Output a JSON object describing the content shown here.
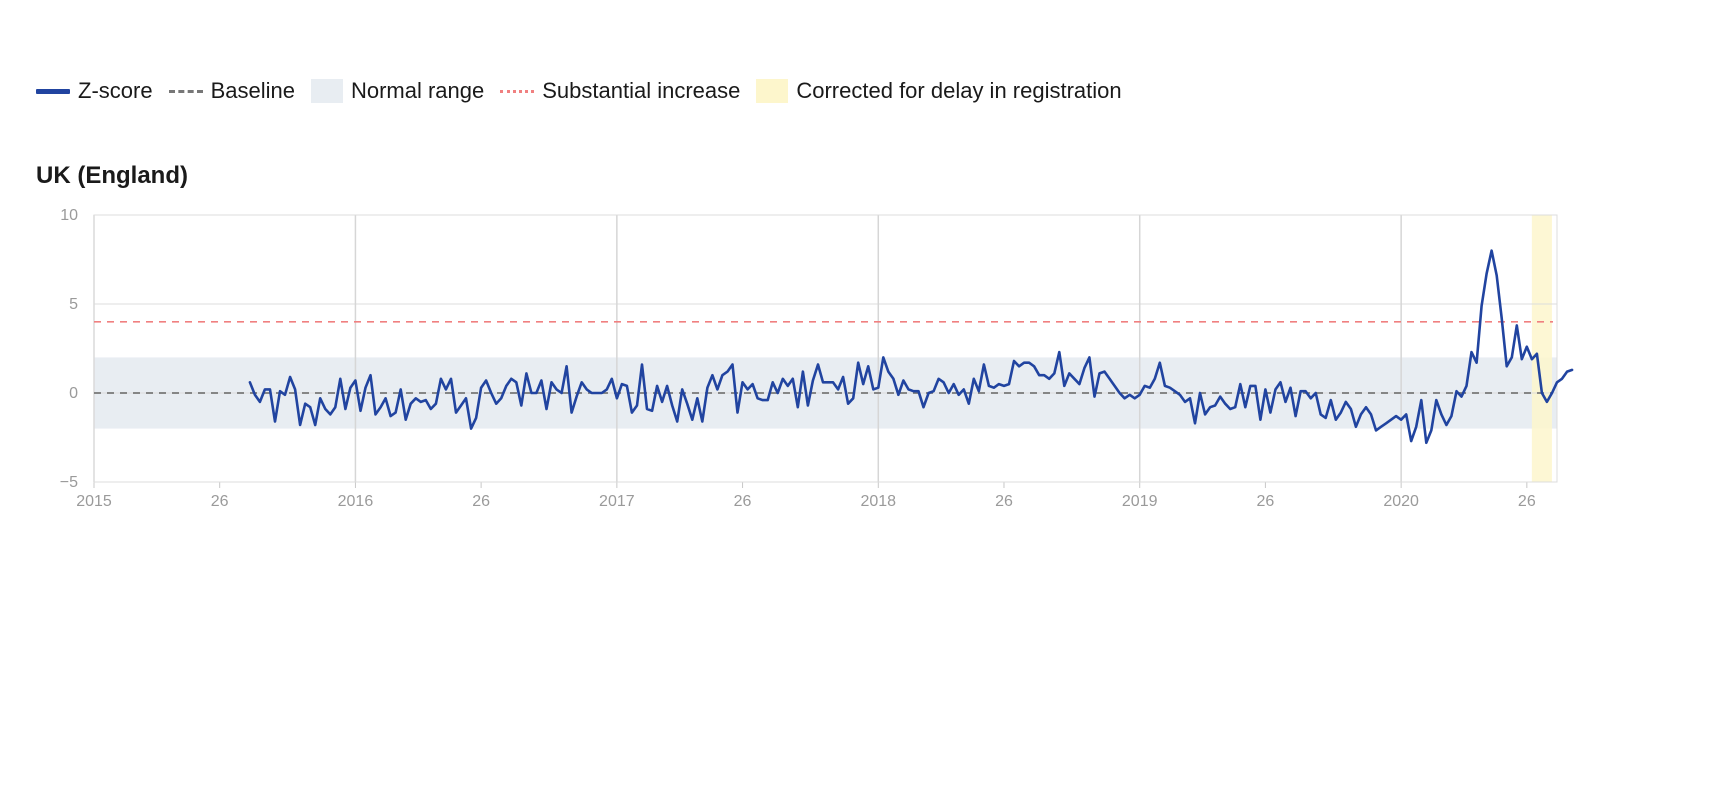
{
  "legend": {
    "zscore": "Z-score",
    "baseline": "Baseline",
    "normal": "Normal range",
    "increase": "Substantial increase",
    "corrected": "Corrected for delay in registration"
  },
  "colors": {
    "zscore": "#2144a0",
    "baseline": "#777777",
    "normal": "#e8edf2",
    "increase": "#f08080",
    "corrected": "#fdf6cc"
  },
  "chart_data": {
    "type": "line",
    "title": "UK (England)",
    "ylim": [
      -5,
      10
    ],
    "yticks": [
      -5,
      0,
      5,
      10
    ],
    "x_ticks": [
      "2015",
      "26",
      "2016",
      "26",
      "2017",
      "26",
      "2018",
      "26",
      "2019",
      "26",
      "2020",
      "26"
    ],
    "x_tick_weeks": [
      1,
      26,
      53,
      78,
      105,
      130,
      157,
      182,
      209,
      234,
      261,
      286
    ],
    "baseline": 0,
    "normal_range": [
      -2,
      2
    ],
    "substantial_increase": 4,
    "corrected_weeks": [
      287,
      291
    ],
    "series": [
      {
        "name": "Z-score",
        "start_week": 32,
        "values": [
          0.6,
          -0.1,
          -0.5,
          0.2,
          0.2,
          -1.6,
          0.1,
          -0.1,
          0.9,
          0.2,
          -1.8,
          -0.6,
          -0.8,
          -1.8,
          -0.3,
          -0.9,
          -1.2,
          -0.8,
          0.8,
          -0.9,
          0.3,
          0.7,
          -1.0,
          0.3,
          1.0,
          -1.2,
          -0.8,
          -0.3,
          -1.3,
          -1.1,
          0.2,
          -1.5,
          -0.6,
          -0.3,
          -0.5,
          -0.4,
          -0.9,
          -0.6,
          0.8,
          0.2,
          0.8,
          -1.1,
          -0.7,
          -0.3,
          -2.0,
          -1.4,
          0.3,
          0.7,
          0.0,
          -0.6,
          -0.3,
          0.4,
          0.8,
          0.6,
          -0.7,
          1.1,
          0.0,
          0.0,
          0.7,
          -0.9,
          0.6,
          0.2,
          0.0,
          1.5,
          -1.1,
          -0.2,
          0.6,
          0.2,
          0.0,
          0.0,
          0.0,
          0.2,
          0.8,
          -0.3,
          0.5,
          0.4,
          -1.1,
          -0.7,
          1.6,
          -0.9,
          -1.0,
          0.4,
          -0.5,
          0.4,
          -0.7,
          -1.6,
          0.2,
          -0.6,
          -1.5,
          -0.3,
          -1.6,
          0.3,
          1.0,
          0.2,
          1.0,
          1.2,
          1.6,
          -1.1,
          0.6,
          0.2,
          0.5,
          -0.3,
          -0.4,
          -0.4,
          0.6,
          0.0,
          0.8,
          0.4,
          0.8,
          -0.8,
          1.2,
          -0.7,
          0.7,
          1.6,
          0.6,
          0.6,
          0.6,
          0.2,
          0.9,
          -0.6,
          -0.3,
          1.7,
          0.5,
          1.5,
          0.2,
          0.3,
          2.0,
          1.2,
          0.8,
          -0.1,
          0.7,
          0.2,
          0.1,
          0.1,
          -0.8,
          0.0,
          0.1,
          0.8,
          0.6,
          0.0,
          0.5,
          -0.1,
          0.2,
          -0.6,
          0.8,
          0.1,
          1.6,
          0.4,
          0.3,
          0.5,
          0.4,
          0.5,
          1.8,
          1.5,
          1.7,
          1.7,
          1.5,
          1.0,
          1.0,
          0.8,
          1.1,
          2.3,
          0.4,
          1.1,
          0.8,
          0.5,
          1.4,
          2.0,
          -0.2,
          1.1,
          1.2,
          0.8,
          0.4,
          0.0,
          -0.3,
          -0.1,
          -0.3,
          -0.1,
          0.4,
          0.3,
          0.8,
          1.7,
          0.4,
          0.3,
          0.1,
          -0.1,
          -0.5,
          -0.3,
          -1.7,
          0.0,
          -1.2,
          -0.8,
          -0.7,
          -0.2,
          -0.6,
          -0.9,
          -0.8,
          0.5,
          -0.8,
          0.4,
          0.4,
          -1.5,
          0.2,
          -1.1,
          0.2,
          0.6,
          -0.5,
          0.3,
          -1.3,
          0.1,
          0.1,
          -0.3,
          0.0,
          -1.2,
          -1.4,
          -0.4,
          -1.5,
          -1.1,
          -0.5,
          -0.9,
          -1.9,
          -1.2,
          -0.8,
          -1.2,
          -2.1,
          -1.9,
          -1.7,
          -1.5,
          -1.3,
          -1.5,
          -1.2,
          -2.7,
          -1.9,
          -0.4,
          -2.8,
          -2.1,
          -0.4,
          -1.2,
          -1.8,
          -1.3,
          0.1,
          -0.2,
          0.4,
          2.3,
          1.7,
          4.9,
          6.7,
          8.0,
          6.6,
          4.2,
          1.5,
          2.0,
          3.8,
          1.9,
          2.6,
          1.9,
          2.2,
          0.0,
          -0.5,
          0.0,
          0.6,
          0.8,
          1.2,
          1.3
        ]
      }
    ]
  }
}
